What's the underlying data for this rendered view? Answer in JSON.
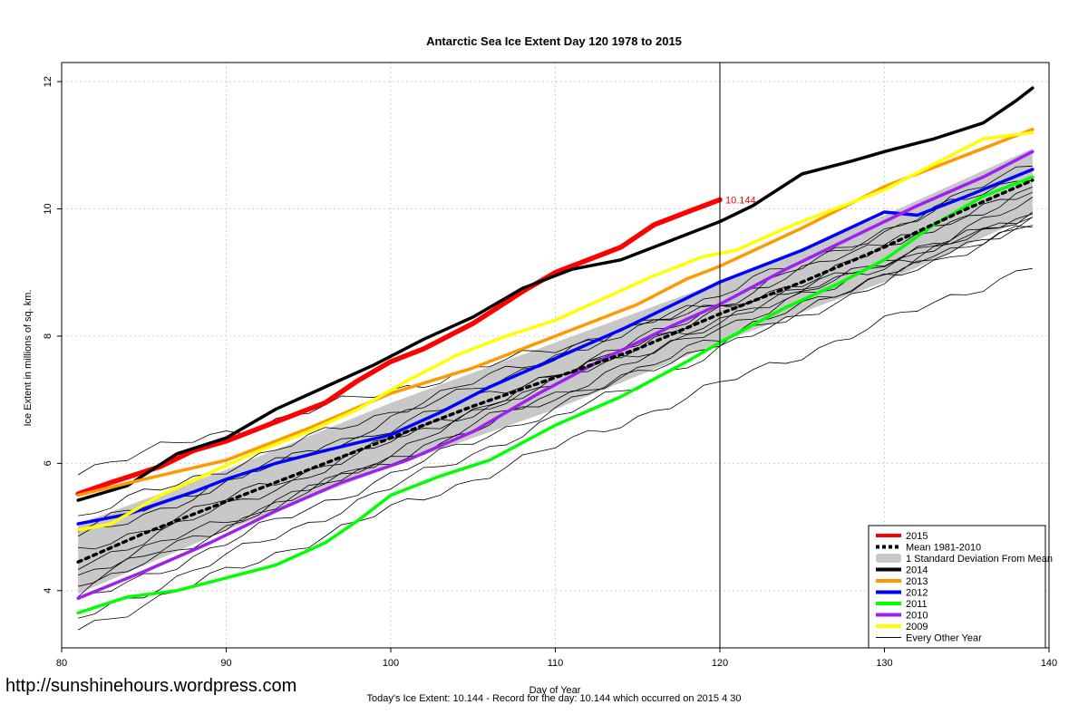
{
  "chart_data": {
    "type": "line",
    "title": "Antarctic Sea Ice Extent Day 120 1978 to 2015",
    "xlabel": "Day of Year",
    "ylabel": "Ice Extent in millions of sq. km.",
    "xlim": [
      80,
      140
    ],
    "ylim": [
      3.1,
      12.3
    ],
    "xticks": [
      80,
      90,
      100,
      110,
      120,
      130,
      140
    ],
    "yticks": [
      4,
      6,
      8,
      10,
      12
    ],
    "vertical_line_x": 120,
    "current_value_label": "10.144",
    "current_value_point": [
      120,
      10.144
    ],
    "colors": {
      "2015": "#ff0000",
      "2014": "#000000",
      "2013": "#ff9900",
      "2012": "#0000ff",
      "2011": "#00ff00",
      "2010": "#a020f0",
      "2009": "#ffff00",
      "mean": "#000000",
      "stddev": "#c8c8c8",
      "other": "#000000"
    },
    "series": [
      {
        "name": "2015",
        "x": [
          81,
          83,
          86,
          88,
          90,
          93,
          96,
          98,
          100,
          102,
          105,
          108,
          110,
          112,
          114,
          116,
          118,
          120
        ],
        "values": [
          5.52,
          5.7,
          5.95,
          6.2,
          6.35,
          6.65,
          6.95,
          7.3,
          7.6,
          7.8,
          8.2,
          8.7,
          9.0,
          9.2,
          9.4,
          9.75,
          9.95,
          10.144
        ]
      },
      {
        "name": "2014",
        "x": [
          81,
          84,
          87,
          90,
          93,
          96,
          99,
          102,
          105,
          108,
          111,
          114,
          117,
          120,
          122,
          125,
          128,
          130,
          133,
          136,
          138,
          139
        ],
        "values": [
          5.42,
          5.65,
          6.15,
          6.4,
          6.85,
          7.2,
          7.55,
          7.95,
          8.3,
          8.75,
          9.05,
          9.2,
          9.5,
          9.8,
          10.05,
          10.55,
          10.75,
          10.9,
          11.1,
          11.35,
          11.7,
          11.9
        ]
      },
      {
        "name": "2013",
        "x": [
          81,
          85,
          90,
          95,
          100,
          105,
          110,
          115,
          118,
          120,
          125,
          130,
          135,
          139
        ],
        "values": [
          5.5,
          5.75,
          6.05,
          6.55,
          7.1,
          7.5,
          8.0,
          8.5,
          8.9,
          9.1,
          9.7,
          10.35,
          10.85,
          11.25
        ]
      },
      {
        "name": "2012",
        "x": [
          81,
          84,
          88,
          90,
          93,
          96,
          100,
          103,
          106,
          110,
          114,
          118,
          120,
          125,
          130,
          132,
          135,
          139
        ],
        "values": [
          5.05,
          5.2,
          5.55,
          5.75,
          6.0,
          6.2,
          6.45,
          6.8,
          7.2,
          7.65,
          8.1,
          8.6,
          8.85,
          9.35,
          9.95,
          9.9,
          10.2,
          10.62
        ]
      },
      {
        "name": "2011",
        "x": [
          81,
          84,
          87,
          90,
          93,
          96,
          98,
          100,
          103,
          106,
          110,
          114,
          118,
          120,
          124,
          127,
          130,
          133,
          136,
          139
        ],
        "values": [
          3.65,
          3.9,
          4.0,
          4.2,
          4.4,
          4.75,
          5.1,
          5.5,
          5.8,
          6.05,
          6.6,
          7.05,
          7.6,
          7.9,
          8.45,
          8.8,
          9.2,
          9.75,
          10.2,
          10.5
        ]
      },
      {
        "name": "2010",
        "x": [
          81,
          85,
          89,
          93,
          97,
          101,
          105,
          109,
          113,
          117,
          120,
          124,
          128,
          132,
          136,
          139
        ],
        "values": [
          3.88,
          4.3,
          4.75,
          5.25,
          5.7,
          6.05,
          6.5,
          7.1,
          7.65,
          8.15,
          8.5,
          9.05,
          9.55,
          10.05,
          10.5,
          10.9
        ]
      },
      {
        "name": "2009",
        "x": [
          81,
          83,
          86,
          89,
          92,
          95,
          98,
          101,
          104,
          107,
          110,
          113,
          116,
          119,
          121,
          124,
          127,
          130,
          133,
          136,
          139
        ],
        "values": [
          4.95,
          5.05,
          5.5,
          5.85,
          6.2,
          6.5,
          6.85,
          7.3,
          7.7,
          8.0,
          8.25,
          8.6,
          8.95,
          9.25,
          9.35,
          9.7,
          10.0,
          10.3,
          10.7,
          11.1,
          11.2
        ]
      },
      {
        "name": "Mean 1981-2010",
        "x": [
          81,
          85,
          90,
          95,
          100,
          105,
          110,
          115,
          120,
          125,
          130,
          135,
          139
        ],
        "values": [
          4.45,
          4.9,
          5.4,
          5.9,
          6.4,
          6.9,
          7.35,
          7.8,
          8.35,
          8.85,
          9.4,
          10.0,
          10.45
        ]
      }
    ],
    "stddev_band": {
      "x": [
        81,
        90,
        100,
        110,
        120,
        130,
        139
      ],
      "upper": [
        5.05,
        5.9,
        6.95,
        7.9,
        8.85,
        9.9,
        10.95
      ],
      "lower": [
        3.95,
        4.95,
        5.95,
        6.85,
        7.9,
        8.85,
        9.9
      ]
    },
    "other_years": [
      {
        "start": 5.9,
        "end": 9.7
      },
      {
        "start": 5.15,
        "end": 10.25
      },
      {
        "start": 4.95,
        "end": 9.9
      },
      {
        "start": 4.8,
        "end": 10.55
      },
      {
        "start": 4.6,
        "end": 9.95
      },
      {
        "start": 4.4,
        "end": 10.3
      },
      {
        "start": 4.25,
        "end": 9.75
      },
      {
        "start": 4.1,
        "end": 10.1
      },
      {
        "start": 3.95,
        "end": 10.7
      },
      {
        "start": 3.8,
        "end": 9.95
      },
      {
        "start": 3.55,
        "end": 9.85
      },
      {
        "start": 3.4,
        "end": 9.1
      }
    ],
    "legend": {
      "position": "bottom-right",
      "entries": [
        {
          "label": "2015",
          "color": "#ff0000",
          "style": "thick"
        },
        {
          "label": "Mean 1981-2010",
          "color": "#000000",
          "style": "dashed"
        },
        {
          "label": "1 Standard Deviation From Mean",
          "color": "#c8c8c8",
          "style": "band"
        },
        {
          "label": "2014",
          "color": "#000000",
          "style": "thick"
        },
        {
          "label": "2013",
          "color": "#ff9900",
          "style": "thick"
        },
        {
          "label": "2012",
          "color": "#0000ff",
          "style": "thick"
        },
        {
          "label": "2011",
          "color": "#00ff00",
          "style": "thick"
        },
        {
          "label": "2010",
          "color": "#a020f0",
          "style": "thick"
        },
        {
          "label": "2009",
          "color": "#ffff00",
          "style": "thick"
        },
        {
          "label": "Every Other Year",
          "color": "#000000",
          "style": "thin"
        }
      ]
    }
  },
  "watermark": "http://sunshinehours.wordpress.com",
  "footer": "Today's Ice Extent: 10.144  - Record for the day: 10.144 which occurred on 2015 4 30"
}
